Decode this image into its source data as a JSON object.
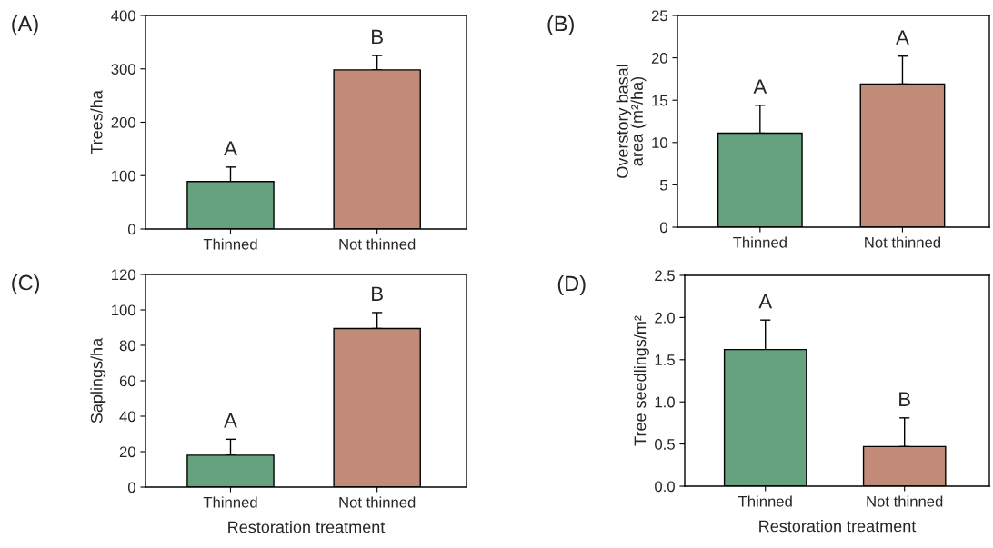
{
  "chart_data": [
    {
      "type": "bar",
      "title": "(A)",
      "ylabel": "Trees/ha",
      "categories": [
        "Thinned",
        "Not thinned"
      ],
      "colors": [
        "#66a27d",
        "#c28a78"
      ],
      "values": [
        89,
        298
      ],
      "errors": [
        [
          89,
          116
        ],
        [
          298,
          325
        ]
      ],
      "ylim": [
        0,
        400
      ],
      "yticks": [
        0,
        100,
        200,
        300,
        400
      ],
      "annotations": [
        {
          "text": "A",
          "x": "Thinned",
          "y": 116
        },
        {
          "text": "B",
          "x": "Not thinned",
          "y": 325
        }
      ]
    },
    {
      "type": "bar",
      "title": "(B)",
      "ylabel": "Overstory basal\narea (m²/ha)",
      "categories": [
        "Thinned",
        "Not thinned"
      ],
      "colors": [
        "#66a27d",
        "#c28a78"
      ],
      "values": [
        11.1,
        16.9
      ],
      "errors": [
        [
          11.1,
          14.4
        ],
        [
          16.9,
          20.2
        ]
      ],
      "ylim": [
        0,
        25
      ],
      "yticks": [
        0,
        5,
        10,
        15,
        20,
        25
      ],
      "annotations": [
        {
          "text": "A",
          "x": "Thinned",
          "y": 14.4
        },
        {
          "text": "A",
          "x": "Not thinned",
          "y": 20.2
        }
      ]
    },
    {
      "type": "bar",
      "title": "(C)",
      "xlabel": "Restoration treatment",
      "ylabel": "Saplings/ha",
      "categories": [
        "Thinned",
        "Not thinned"
      ],
      "colors": [
        "#66a27d",
        "#c28a78"
      ],
      "values": [
        18,
        89.5
      ],
      "errors": [
        [
          18,
          27
        ],
        [
          89.5,
          98.5
        ]
      ],
      "ylim": [
        0,
        120
      ],
      "yticks": [
        0,
        20,
        40,
        60,
        80,
        100,
        120
      ],
      "annotations": [
        {
          "text": "A",
          "x": "Thinned",
          "y": 27
        },
        {
          "text": "B",
          "x": "Not thinned",
          "y": 98.5
        }
      ]
    },
    {
      "type": "bar",
      "title": "(D)",
      "xlabel": "Restoration treatment",
      "ylabel": "Tree seedlings/m²",
      "categories": [
        "Thinned",
        "Not thinned"
      ],
      "colors": [
        "#66a27d",
        "#c28a78"
      ],
      "values": [
        1.62,
        0.47
      ],
      "errors": [
        [
          1.62,
          1.97
        ],
        [
          0.47,
          0.81
        ]
      ],
      "ylim": [
        0,
        2.5
      ],
      "yticks": [
        {
          "value": 0,
          "label": "0.0"
        },
        0.5,
        {
          "value": 1,
          "label": "1.0"
        },
        1.5,
        {
          "value": 2,
          "label": "2.0"
        },
        2.5
      ],
      "annotations": [
        {
          "text": "A",
          "x": "Thinned",
          "y": 1.97
        },
        {
          "text": "B",
          "x": "Not thinned",
          "y": 0.81
        }
      ]
    }
  ]
}
